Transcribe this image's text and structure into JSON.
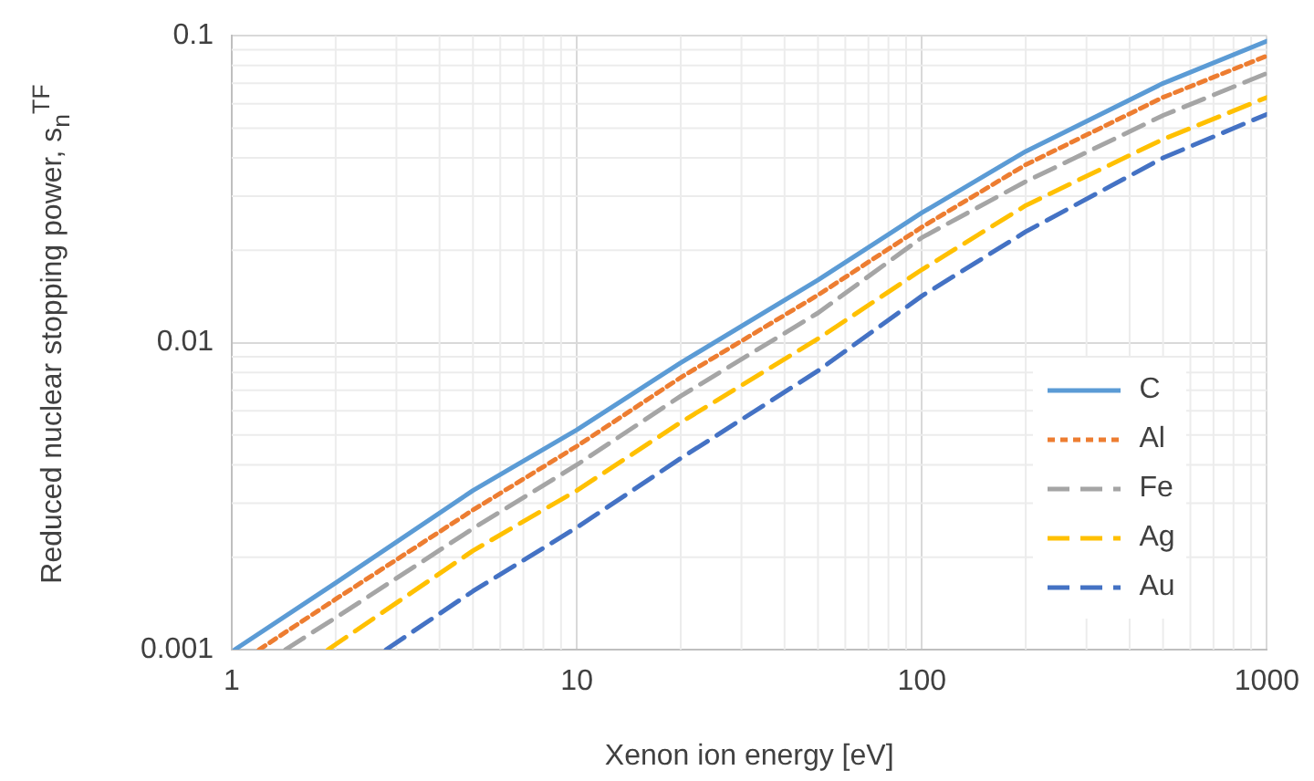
{
  "chart_data": {
    "type": "line",
    "xlabel": "Xenon ion energy [eV]",
    "ylabel": "Reduced nuclear stopping power, s$_{n}$$^{TF}$",
    "log": "xy",
    "grid": true,
    "legend": "bottom right",
    "marker": "none",
    "xlim": [
      1,
      1000
    ],
    "xticks": [
      1,
      10,
      100,
      1000
    ],
    "ylim": [
      0.001,
      0.1
    ],
    "yticks": [
      0.001,
      0.01,
      0.1
    ],
    "series": [
      {
        "name": "C",
        "color": "#5b9bd5",
        "line_style": "solid",
        "x": [
          1.02,
          2,
          5,
          10,
          20,
          50,
          100,
          200,
          500,
          1000
        ],
        "values": [
          0.001,
          0.00165,
          0.0033,
          0.0052,
          0.0086,
          0.016,
          0.0265,
          0.042,
          0.07,
          0.096
        ]
      },
      {
        "name": "Al",
        "color": "#ed7d31",
        "line_style": "dotted",
        "x": [
          1.2,
          2,
          5,
          10,
          20,
          50,
          100,
          200,
          500,
          1000
        ],
        "values": [
          0.001,
          0.00146,
          0.00285,
          0.0046,
          0.0077,
          0.0143,
          0.0238,
          0.038,
          0.063,
          0.086
        ]
      },
      {
        "name": "Fe",
        "color": "#a5a5a5",
        "line_style": "dashed",
        "x": [
          1.43,
          2,
          5,
          10,
          20,
          50,
          100,
          200,
          500,
          1000
        ],
        "values": [
          0.001,
          0.00127,
          0.00248,
          0.004,
          0.0067,
          0.0125,
          0.022,
          0.0335,
          0.055,
          0.0755
        ]
      },
      {
        "name": "Ag",
        "color": "#ffc000",
        "line_style": "dashed",
        "x": [
          1.9,
          2,
          5,
          10,
          20,
          50,
          100,
          200,
          500,
          1000
        ],
        "values": [
          0.001,
          0.00104,
          0.0021,
          0.0033,
          0.0055,
          0.0103,
          0.0173,
          0.028,
          0.046,
          0.063
        ]
      },
      {
        "name": "Au",
        "color": "#4472c4",
        "line_style": "dashed",
        "x": [
          2.8,
          5,
          10,
          20,
          50,
          100,
          200,
          500,
          1000
        ],
        "values": [
          0.001,
          0.00155,
          0.0025,
          0.0042,
          0.0081,
          0.0142,
          0.023,
          0.04,
          0.0555
        ]
      }
    ]
  }
}
